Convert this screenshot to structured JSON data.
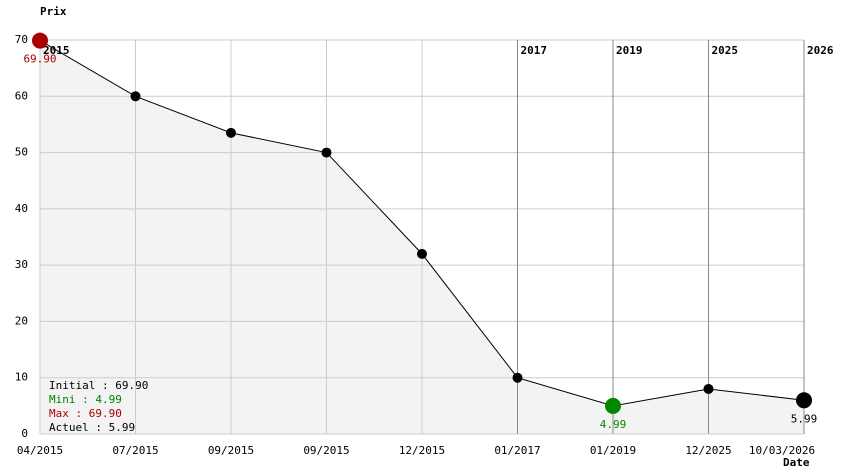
{
  "chart_data": {
    "type": "line",
    "y_label": "Prix",
    "x_label": "Date",
    "categories": [
      "04/2015",
      "07/2015",
      "09/2015",
      "09/2015",
      "12/2015",
      "01/2017",
      "01/2019",
      "12/2025",
      "10/03/2026"
    ],
    "year_labels": [
      "2015",
      null,
      null,
      null,
      null,
      "2017",
      "2019",
      "2025",
      "2026"
    ],
    "series": [
      {
        "color": "#000000",
        "values": [
          69.9,
          60,
          53.5,
          50,
          32,
          10,
          4.99,
          8,
          5.99
        ],
        "value_labels": [
          "69.90",
          null,
          null,
          null,
          null,
          null,
          "4.99",
          null,
          "5.99"
        ]
      }
    ],
    "max_color": "#aa0000",
    "min_color": "#008800",
    "area_color": "#f3f3f3",
    "ylim": [
      0,
      70
    ],
    "yticks": [
      0,
      10,
      20,
      30,
      40,
      50,
      60,
      70
    ],
    "grid": true,
    "legend": [
      {
        "text": "Initial : 69.90",
        "color": "#000000"
      },
      {
        "text": "Mini : 4.99",
        "color": "#008000"
      },
      {
        "text": "Max : 69.90",
        "color": "#aa0000"
      },
      {
        "text": "Actuel : 5.99",
        "color": "#000000"
      }
    ]
  }
}
